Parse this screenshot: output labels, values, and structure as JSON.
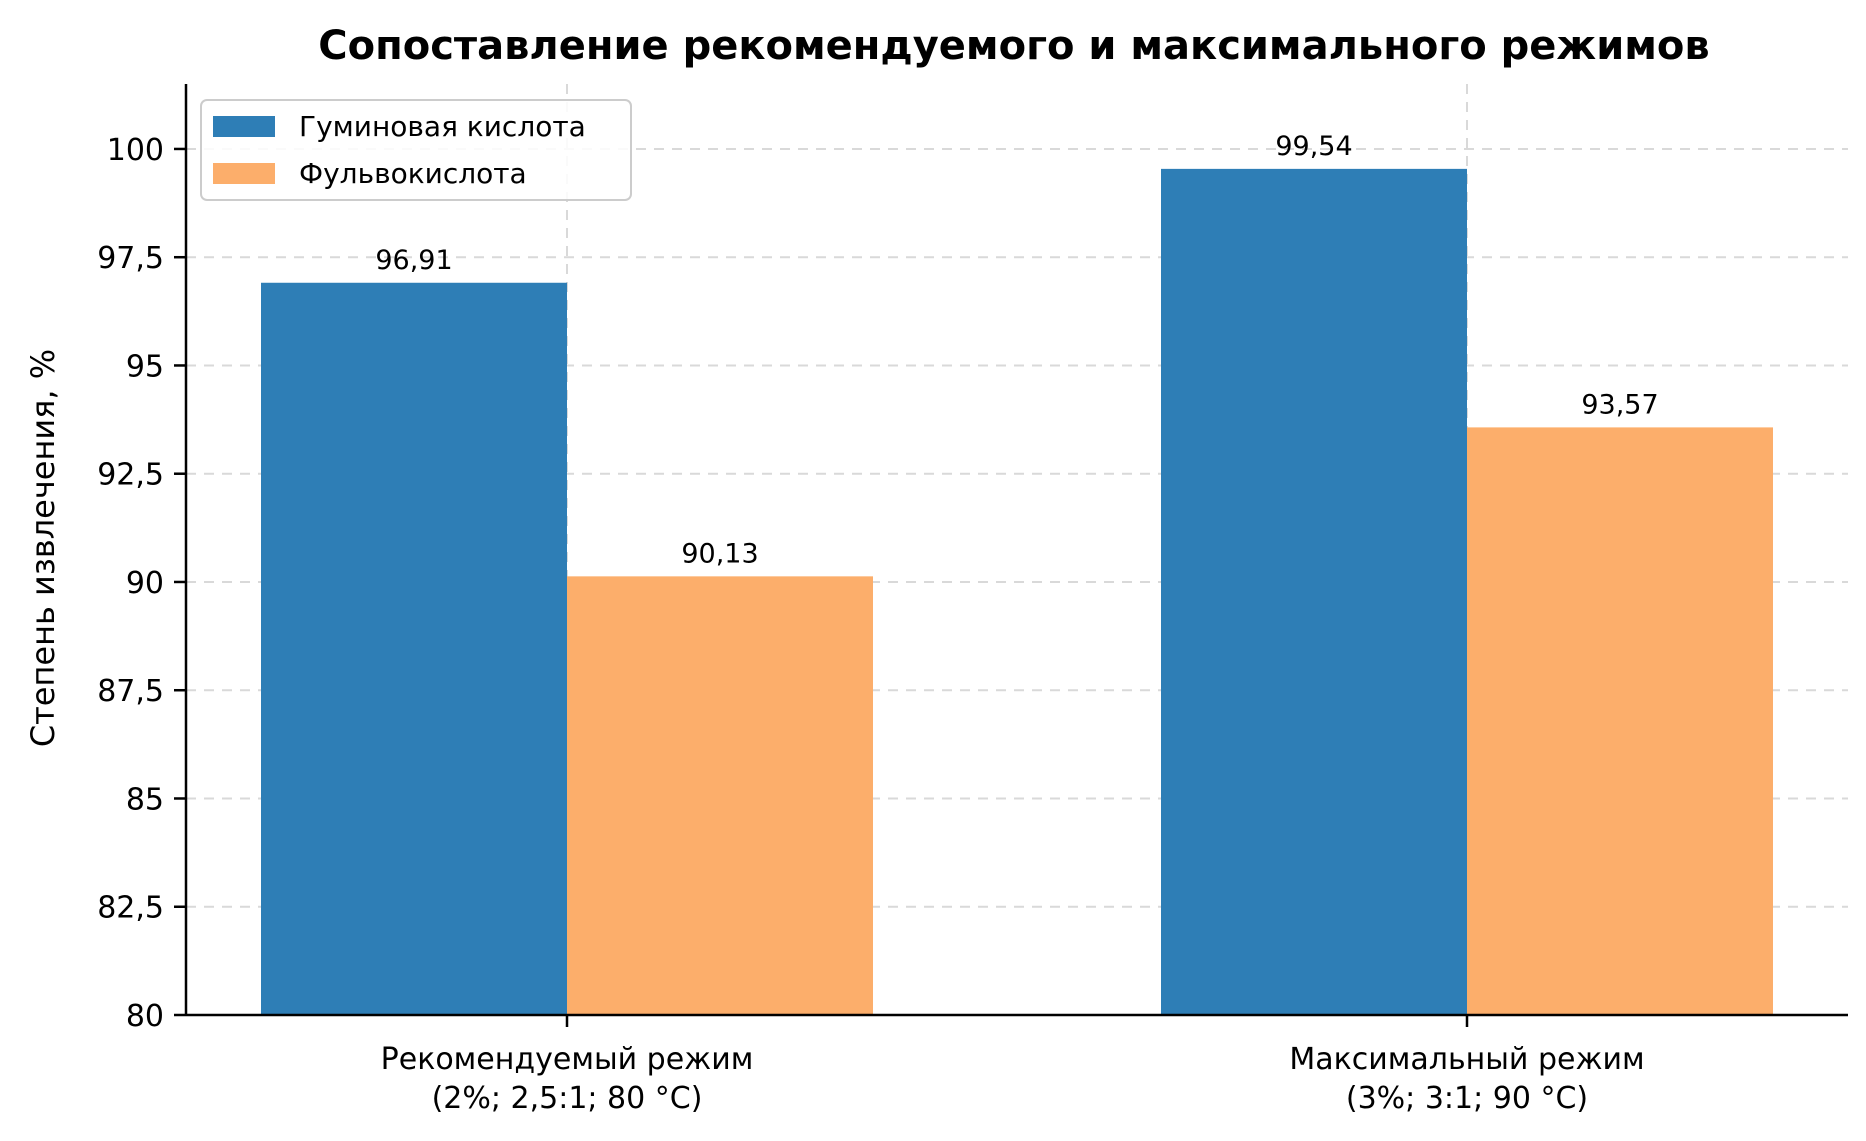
{
  "chart_data": {
    "type": "bar",
    "title": "Сопоставление рекомендуемого и максимального режимов",
    "ylabel": "Степень извлечения, %",
    "xlabel": "",
    "ylim": [
      80,
      101.5
    ],
    "yticks": [
      80,
      82.5,
      85,
      87.5,
      90,
      92.5,
      95,
      97.5,
      100
    ],
    "ytick_labels": [
      "80",
      "82,5",
      "85",
      "87,5",
      "90",
      "92,5",
      "95",
      "97,5",
      "100"
    ],
    "categories": [
      [
        "Рекомендуемый режим",
        "(2%; 2,5:1; 80 °C)"
      ],
      [
        "Максимальный режим",
        "(3%; 3:1; 90 °C)"
      ]
    ],
    "series": [
      {
        "name": "Гуминовая кислота",
        "color": "#2e7eb6",
        "values": [
          96.91,
          99.54
        ],
        "labels": [
          "96,91",
          "99,54"
        ]
      },
      {
        "name": "Фульвокислота",
        "color": "#fcae6b",
        "values": [
          90.13,
          93.57
        ],
        "labels": [
          "90,13",
          "93,57"
        ]
      }
    ],
    "grid": true,
    "legend": "top-left"
  }
}
